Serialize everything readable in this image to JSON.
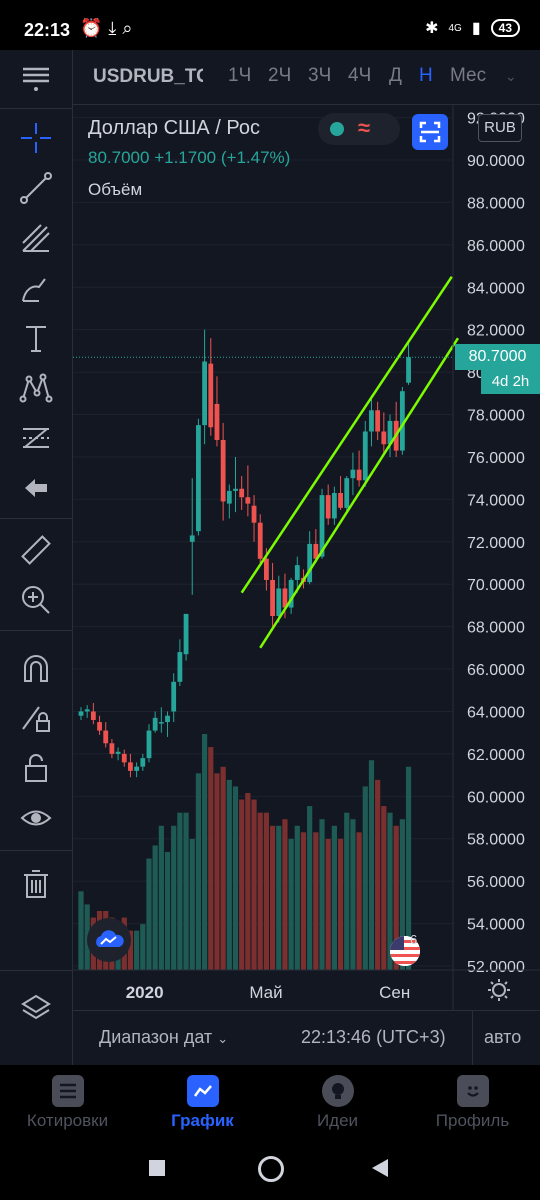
{
  "status_bar": {
    "time": "22:13",
    "battery": "43",
    "network": "4G"
  },
  "header": {
    "symbol": "USDRUB_TOM",
    "timeframes": [
      "1Ч",
      "2Ч",
      "3Ч",
      "4Ч",
      "Д",
      "Н",
      "Мес"
    ],
    "active_timeframe": "Н"
  },
  "legend": {
    "title": "Доллар США / Рос",
    "last": "80.7000",
    "change": "+1.1700",
    "change_pct": "(+1.47%)",
    "volume_label": "Объём",
    "currency": "RUB"
  },
  "price_scale": {
    "ticks": [
      "92.0000",
      "90.0000",
      "88.0000",
      "86.0000",
      "84.0000",
      "82.0000",
      "80.0000",
      "78.0000",
      "76.0000",
      "74.0000",
      "72.0000",
      "70.0000",
      "68.0000",
      "66.0000",
      "64.0000",
      "62.0000",
      "60.0000",
      "58.0000",
      "56.0000",
      "54.0000",
      "52.0000"
    ],
    "current_price": "80.7000",
    "countdown": "4d 2h"
  },
  "time_scale": {
    "labels": [
      "2020",
      "Май",
      "Сен"
    ]
  },
  "events_badge": "6",
  "bottom_bar": {
    "date_range": "Диапазон дат",
    "clock": "22:13:46 (UTC+3)",
    "auto": "авто"
  },
  "nav": {
    "items": [
      "Котировки",
      "График",
      "Идеи",
      "Профиль"
    ],
    "active": "График"
  },
  "colors": {
    "up": "#26a69a",
    "down": "#ef5350",
    "channel": "#7cfc00",
    "accent": "#2962ff",
    "bg": "#131722"
  },
  "chart_data": {
    "type": "candlestick",
    "title": "Доллар США / Рос",
    "interval": "1W",
    "ylim": [
      52,
      92
    ],
    "candles": [
      [
        63.8,
        64.2,
        63.6,
        64.0
      ],
      [
        64.0,
        64.3,
        63.7,
        64.1
      ],
      [
        64.0,
        64.4,
        63.4,
        63.6
      ],
      [
        63.5,
        63.8,
        62.9,
        63.1
      ],
      [
        63.1,
        63.5,
        62.3,
        62.5
      ],
      [
        62.5,
        62.7,
        61.8,
        62.0
      ],
      [
        62.0,
        62.3,
        61.7,
        62.1
      ],
      [
        62.0,
        62.2,
        61.4,
        61.6
      ],
      [
        61.6,
        62.0,
        60.9,
        61.2
      ],
      [
        61.2,
        61.6,
        60.9,
        61.4
      ],
      [
        61.4,
        62.0,
        61.2,
        61.8
      ],
      [
        61.8,
        63.4,
        61.6,
        63.1
      ],
      [
        63.1,
        64.0,
        63.0,
        63.7
      ],
      [
        63.5,
        64.2,
        63.0,
        63.5
      ],
      [
        63.5,
        64.0,
        62.8,
        63.8
      ],
      [
        64.0,
        65.8,
        63.5,
        65.4
      ],
      [
        65.4,
        67.4,
        65.2,
        66.8
      ],
      [
        66.7,
        68.6,
        66.4,
        68.6
      ],
      [
        72.0,
        75.0,
        69.5,
        72.3
      ],
      [
        72.5,
        77.8,
        72.3,
        77.5
      ],
      [
        77.5,
        82.0,
        76.6,
        80.5
      ],
      [
        80.4,
        81.6,
        77.0,
        77.4
      ],
      [
        78.5,
        79.8,
        76.5,
        76.8
      ],
      [
        76.8,
        77.6,
        73.0,
        73.9
      ],
      [
        73.8,
        74.7,
        73.1,
        74.4
      ],
      [
        74.4,
        76.0,
        73.4,
        74.5
      ],
      [
        74.5,
        75.1,
        73.5,
        74.1
      ],
      [
        74.1,
        75.6,
        73.2,
        73.8
      ],
      [
        73.7,
        74.2,
        72.0,
        72.9
      ],
      [
        72.9,
        73.3,
        71.0,
        71.2
      ],
      [
        71.2,
        71.7,
        69.7,
        70.2
      ],
      [
        70.2,
        71.0,
        68.0,
        68.5
      ],
      [
        68.5,
        70.4,
        68.2,
        69.8
      ],
      [
        69.8,
        70.5,
        68.4,
        68.9
      ],
      [
        68.9,
        70.3,
        68.6,
        70.2
      ],
      [
        70.2,
        71.3,
        69.6,
        70.9
      ],
      [
        70.3,
        70.7,
        69.8,
        70.1
      ],
      [
        70.1,
        72.5,
        70.0,
        71.9
      ],
      [
        71.9,
        72.6,
        71.0,
        71.2
      ],
      [
        71.3,
        74.5,
        71.2,
        74.2
      ],
      [
        74.2,
        74.7,
        72.8,
        73.1
      ],
      [
        73.1,
        74.6,
        72.8,
        74.3
      ],
      [
        74.3,
        75.1,
        73.5,
        73.6
      ],
      [
        73.6,
        75.1,
        73.4,
        75.0
      ],
      [
        75.0,
        76.2,
        74.2,
        75.4
      ],
      [
        75.4,
        76.3,
        74.6,
        74.9
      ],
      [
        74.9,
        77.7,
        74.6,
        77.2
      ],
      [
        77.2,
        78.9,
        76.5,
        78.2
      ],
      [
        78.2,
        78.6,
        76.8,
        77.2
      ],
      [
        77.2,
        78.1,
        76.2,
        76.6
      ],
      [
        76.6,
        78.0,
        76.0,
        77.7
      ],
      [
        77.7,
        78.6,
        76.0,
        76.3
      ],
      [
        76.3,
        79.3,
        76.1,
        79.1
      ],
      [
        79.5,
        81.5,
        79.4,
        80.7
      ]
    ],
    "volume_max": 60,
    "channel": {
      "upper": [
        [
          4,
          68.2
        ],
        [
          50,
          84.0
        ]
      ],
      "lower": [
        [
          6,
          67.0
        ],
        [
          51,
          81.7
        ]
      ]
    }
  }
}
